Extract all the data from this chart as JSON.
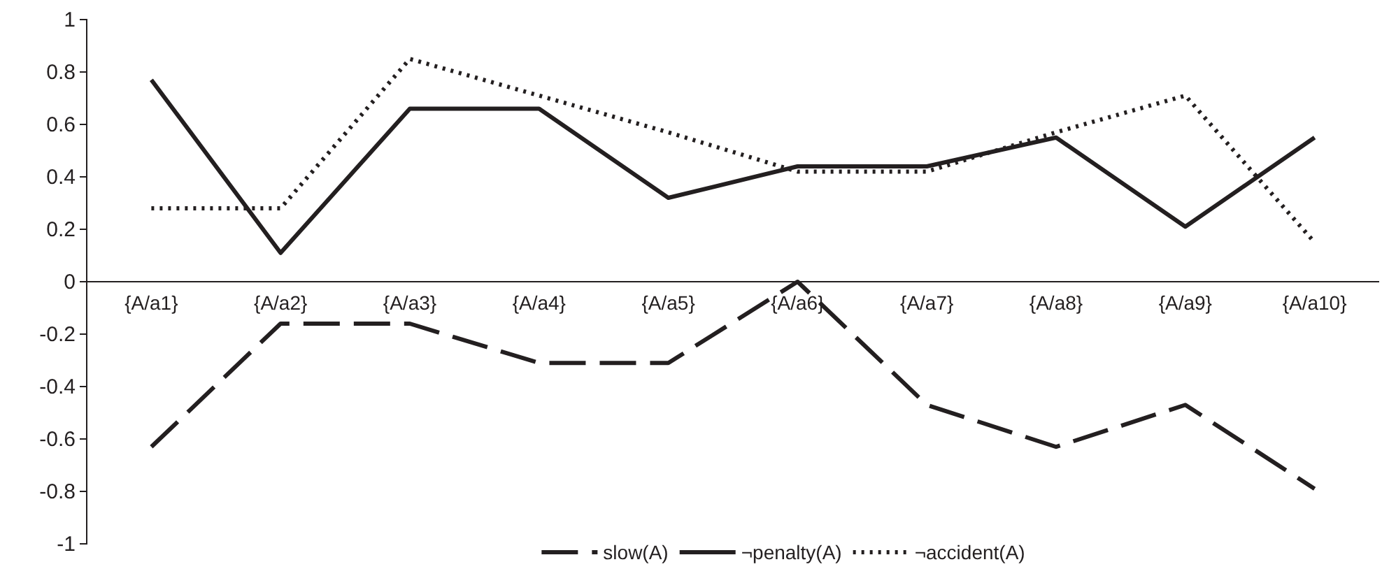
{
  "chart_data": {
    "type": "line",
    "categories": [
      "{A/a1}",
      "{A/a2}",
      "{A/a3}",
      "{A/a4}",
      "{A/a5}",
      "{A/a6}",
      "{A/a7}",
      "{A/a8}",
      "{A/a9}",
      "{A/a10}"
    ],
    "series": [
      {
        "name": "slow(A)",
        "color": "#231f20",
        "line_style": "dashed",
        "values": [
          -0.63,
          -0.16,
          -0.16,
          -0.31,
          -0.31,
          0,
          -0.47,
          -0.63,
          -0.47,
          -0.79
        ]
      },
      {
        "name": "¬penalty(A)",
        "color": "#231f20",
        "line_style": "solid",
        "values": [
          0.77,
          0.11,
          0.66,
          0.66,
          0.32,
          0.44,
          0.44,
          0.55,
          0.21,
          0.55
        ]
      },
      {
        "name": "¬accident(A)",
        "color": "#231f20",
        "line_style": "dotted",
        "values": [
          0.28,
          0.28,
          0.85,
          0.71,
          0.57,
          0.42,
          0.42,
          0.57,
          0.71,
          0.15
        ]
      }
    ],
    "ylim": [
      -1,
      1
    ],
    "yticks": [
      -1,
      -0.8,
      -0.6,
      -0.4,
      -0.2,
      0,
      0.2,
      0.4,
      0.6,
      0.8,
      1
    ],
    "grid": false,
    "legend": "bottom",
    "marker": "none"
  }
}
